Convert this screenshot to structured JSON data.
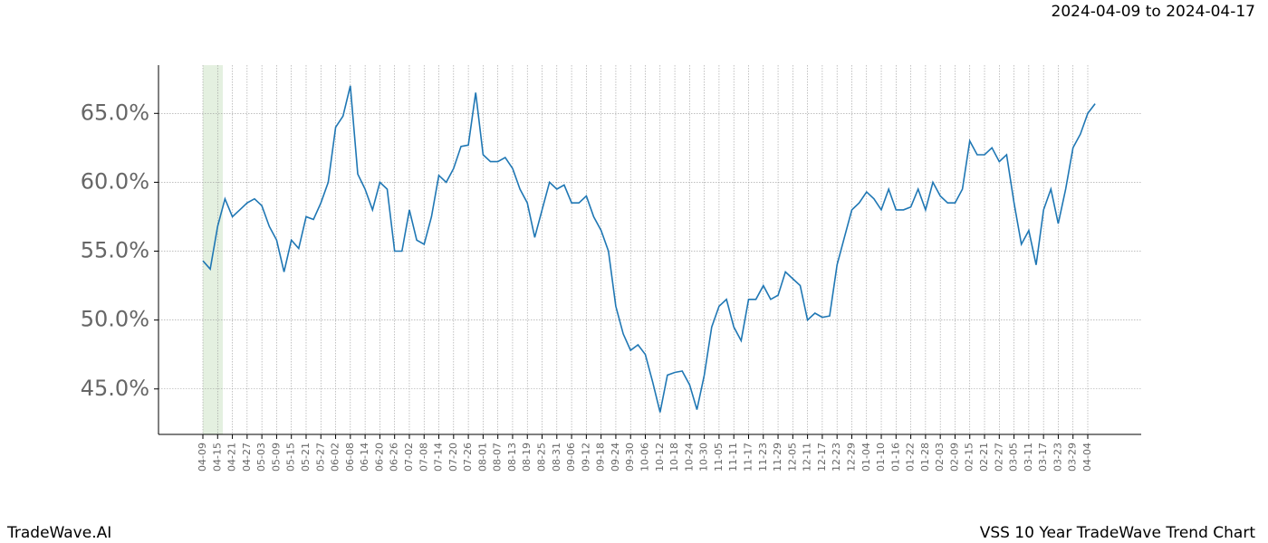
{
  "chart_data": {
    "type": "line",
    "title": "VSS 10 Year TradeWave Trend Chart",
    "subtitle": "2024-04-09 to 2024-04-17",
    "brand": "TradeWave.AI",
    "categories": [
      "04-09",
      null,
      "04-15",
      null,
      "04-21",
      null,
      "04-27",
      null,
      "05-03",
      null,
      "05-09",
      null,
      "05-15",
      null,
      "05-21",
      null,
      "05-27",
      null,
      "06-02",
      null,
      "06-08",
      null,
      "06-14",
      null,
      "06-20",
      null,
      "06-26",
      null,
      "07-02",
      null,
      "07-08",
      null,
      "07-14",
      null,
      "07-20",
      null,
      "07-26",
      null,
      "08-01",
      null,
      "08-07",
      null,
      "08-13",
      null,
      "08-19",
      null,
      "08-25",
      null,
      "08-31",
      null,
      "09-06",
      null,
      "09-12",
      null,
      "09-18",
      null,
      "09-24",
      null,
      "09-30",
      null,
      "10-06",
      null,
      "10-12",
      null,
      "10-18",
      null,
      "10-24",
      null,
      "10-30",
      null,
      "11-05",
      null,
      "11-11",
      null,
      "11-17",
      null,
      "11-23",
      null,
      "11-29",
      null,
      "12-05",
      null,
      "12-11",
      null,
      "12-17",
      null,
      "12-23",
      null,
      "12-29",
      null,
      "01-04",
      null,
      "01-10",
      null,
      "01-16",
      null,
      "01-22",
      null,
      "01-28",
      null,
      "02-03",
      null,
      "02-09",
      null,
      "02-15",
      null,
      "02-21",
      null,
      "02-27",
      null,
      "03-05",
      null,
      "03-11",
      null,
      "03-17",
      null,
      "03-23",
      null,
      "03-29",
      null,
      "04-04",
      null
    ],
    "values": [
      54.3,
      53.7,
      56.8,
      58.8,
      57.5,
      58.0,
      58.5,
      58.8,
      58.3,
      56.8,
      55.8,
      53.5,
      55.8,
      55.2,
      57.5,
      57.3,
      58.5,
      60.0,
      64.0,
      64.8,
      67.0,
      60.6,
      59.5,
      58.0,
      60.0,
      59.5,
      55.0,
      55.0,
      58.0,
      55.8,
      55.5,
      57.5,
      60.5,
      60.0,
      61.0,
      62.6,
      62.7,
      66.5,
      62.0,
      61.5,
      61.5,
      61.8,
      61.0,
      59.5,
      58.5,
      56.0,
      58.0,
      60.0,
      59.5,
      59.8,
      58.5,
      58.5,
      59.0,
      57.5,
      56.5,
      55.0,
      51.0,
      49.0,
      47.8,
      48.2,
      47.5,
      45.5,
      43.3,
      46.0,
      46.2,
      46.3,
      45.3,
      43.5,
      46.0,
      49.5,
      51.0,
      51.5,
      49.5,
      48.5,
      51.5,
      51.5,
      52.5,
      51.5,
      51.8,
      53.5,
      53.0,
      52.5,
      50.0,
      50.5,
      50.2,
      50.3,
      54.0,
      56.0,
      58.0,
      58.5,
      59.3,
      58.8,
      58.0,
      59.5,
      58.0,
      58.0,
      58.2,
      59.5,
      58.0,
      60.0,
      59.0,
      58.5,
      58.5,
      59.5,
      63.0,
      62.0,
      62.0,
      62.5,
      61.5,
      62.0,
      58.5,
      55.5,
      56.5,
      54.0,
      58.0,
      59.5,
      57.0,
      59.5,
      62.5,
      63.5,
      65.0,
      65.7
    ],
    "color": "#1f77b4",
    "ylim": [
      41.7,
      68.5
    ],
    "yticks": [
      {
        "value": 45,
        "label": "45.0%"
      },
      {
        "value": 50,
        "label": "50.0%"
      },
      {
        "value": 55,
        "label": "55.0%"
      },
      {
        "value": 60,
        "label": "60.0%"
      },
      {
        "value": 65,
        "label": "65.0%"
      }
    ],
    "grid": true
  }
}
